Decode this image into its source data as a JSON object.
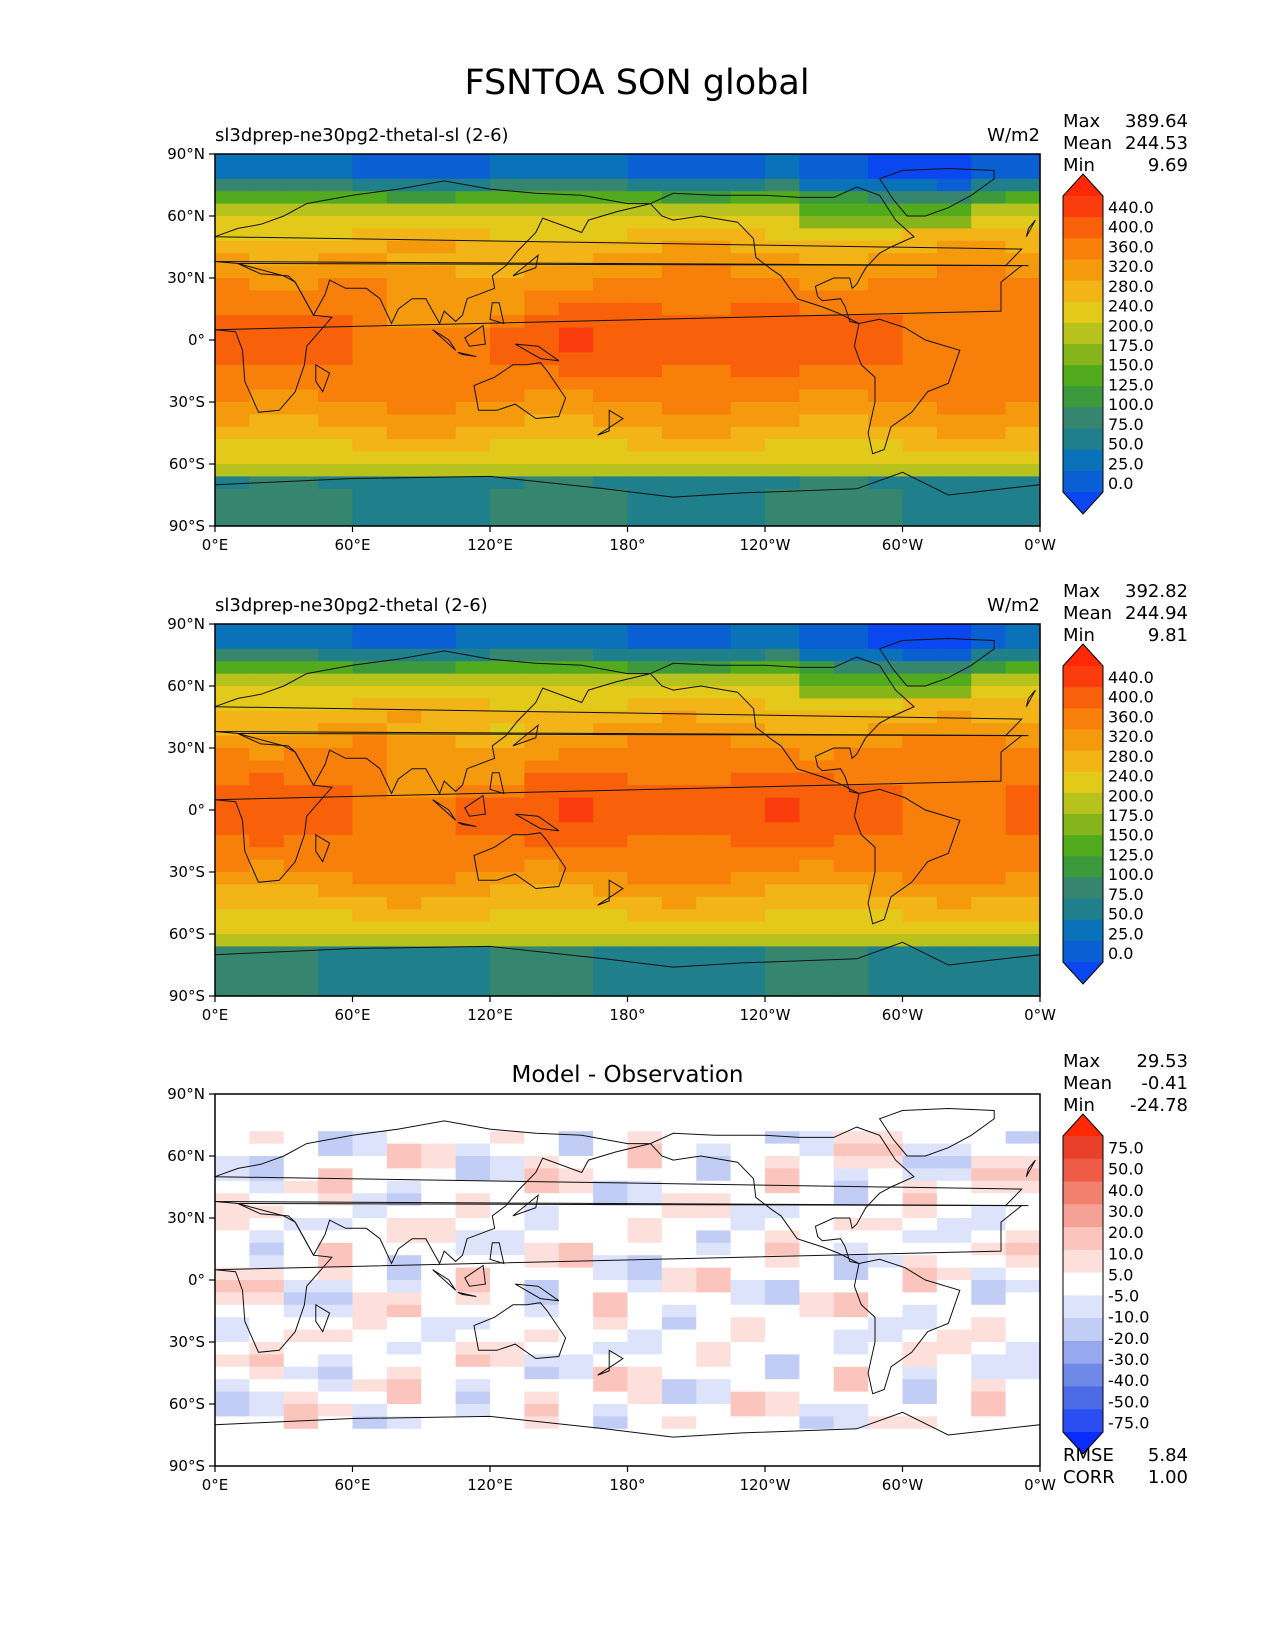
{
  "figure": {
    "title": "FSNTOA SON global"
  },
  "axes": {
    "lat_ticks": [
      "90°N",
      "60°N",
      "30°N",
      "0°",
      "30°S",
      "60°S",
      "90°S"
    ],
    "lon_ticks": [
      "0°E",
      "60°E",
      "120°E",
      "180°",
      "120°W",
      "60°W",
      "0°W"
    ]
  },
  "panels": [
    {
      "left_title": "sl3dprep-ne30pg2-thetal-sl (2-6)",
      "center_title": "",
      "units": "W/m2",
      "stats": {
        "max_label": "Max",
        "max": "389.64",
        "mean_label": "Mean",
        "mean": "244.53",
        "min_label": "Min",
        "min": "9.69"
      },
      "colorbar_labels": [
        "440.0",
        "400.0",
        "360.0",
        "320.0",
        "280.0",
        "240.0",
        "200.0",
        "175.0",
        "150.0",
        "125.0",
        "100.0",
        "75.0",
        "50.0",
        "25.0",
        "0.0"
      ],
      "field": "model1"
    },
    {
      "left_title": "sl3dprep-ne30pg2-thetal (2-6)",
      "center_title": "",
      "units": "W/m2",
      "stats": {
        "max_label": "Max",
        "max": "392.82",
        "mean_label": "Mean",
        "mean": "244.94",
        "min_label": "Min",
        "min": "9.81"
      },
      "colorbar_labels": [
        "440.0",
        "400.0",
        "360.0",
        "320.0",
        "280.0",
        "240.0",
        "200.0",
        "175.0",
        "150.0",
        "125.0",
        "100.0",
        "75.0",
        "50.0",
        "25.0",
        "0.0"
      ],
      "field": "model2"
    },
    {
      "left_title": "",
      "center_title": "Model - Observation",
      "units": "",
      "stats": {
        "max_label": "Max",
        "max": "29.53",
        "mean_label": "Mean",
        "mean": "-0.41",
        "min_label": "Min",
        "min": "-24.78"
      },
      "colorbar_labels": [
        "75.0",
        "50.0",
        "40.0",
        "30.0",
        "20.0",
        "10.0",
        "5.0",
        "-5.0",
        "-10.0",
        "-20.0",
        "-30.0",
        "-40.0",
        "-50.0",
        "-75.0"
      ],
      "extra_stats": {
        "rmse_label": "RMSE",
        "rmse": "5.84",
        "corr_label": "CORR",
        "corr": "1.00"
      },
      "field": "diff"
    }
  ],
  "colors": {
    "model_scale": [
      "#0a47f0",
      "#0a5fd3",
      "#0a72b8",
      "#1f7f8a",
      "#36866f",
      "#3c9a3c",
      "#52ab1d",
      "#86b51b",
      "#b7c21c",
      "#e3c91a",
      "#f2b416",
      "#f59a0d",
      "#f77f0a",
      "#f8600a",
      "#fb3d0e",
      "#ff2a05"
    ],
    "diff_scale": [
      "#0b2cff",
      "#2a4ef2",
      "#4b6be6",
      "#6f89e6",
      "#97a8ee",
      "#c2cdf6",
      "#dde3fb",
      "#ffffff",
      "#fde0db",
      "#fbc5bd",
      "#f6a195",
      "#f2806f",
      "#ee5b47",
      "#e8402b",
      "#ff2a05"
    ]
  }
}
